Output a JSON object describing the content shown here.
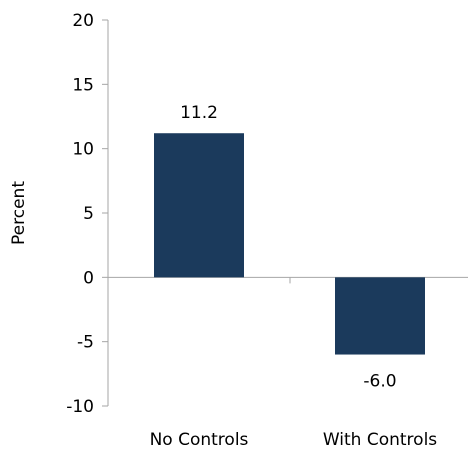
{
  "chart_data": {
    "type": "bar",
    "categories": [
      "No Controls",
      "With Controls"
    ],
    "values": [
      11.2,
      -6.0
    ],
    "value_labels": [
      "11.2",
      "-6.0"
    ],
    "title": "",
    "xlabel": "",
    "ylabel": "Percent",
    "ylim": [
      -10,
      20
    ],
    "yticks": [
      20,
      15,
      10,
      5,
      0,
      -5,
      -10
    ],
    "ytick_labels": [
      "20",
      "15",
      "10",
      "5",
      "0",
      "-5",
      "-10"
    ],
    "grid": false,
    "legend": "none",
    "bar_color": "#1b3a5c",
    "axis_color": "#a6a6a6"
  }
}
